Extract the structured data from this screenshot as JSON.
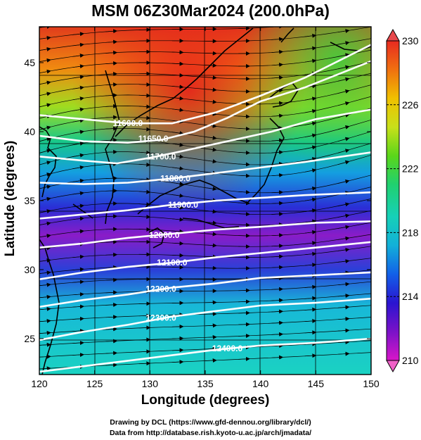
{
  "title": "MSM 06Z30Mar2024 (200.0hPa)",
  "xlabel": "Longitude (degrees)",
  "ylabel": "Latitude  (degrees)",
  "credits": [
    "Drawing by DCL (https://www.gfd-dennou.org/library/dcl/)",
    "Data from http://database.rish.kyoto-u.ac.jp/arch/jmadata/"
  ],
  "chart_data": {
    "type": "map",
    "xlim": [
      120,
      150
    ],
    "ylim": [
      22.4,
      47.6
    ],
    "x_ticks": [
      120,
      125,
      130,
      135,
      140,
      145,
      150
    ],
    "x_tick_labels": [
      "120",
      "125",
      "130",
      "135",
      "140",
      "145",
      "150"
    ],
    "y_ticks": [
      25,
      30,
      35,
      40,
      45
    ],
    "y_tick_labels": [
      "25",
      "30",
      "35",
      "40",
      "45"
    ],
    "colorbar": {
      "min": 210,
      "max": 230,
      "tick_values": [
        210,
        214,
        218,
        222,
        226,
        230
      ],
      "tick_labels": [
        "210",
        "214",
        "218",
        "222",
        "226",
        "230"
      ],
      "colors": [
        "#d816c8",
        "#7a12c8",
        "#2a14d0",
        "#1260e8",
        "#12b0d8",
        "#16d0b8",
        "#20d070",
        "#5ad61a",
        "#c8e01a",
        "#f0c000",
        "#f07010",
        "#e82a20"
      ]
    },
    "contours": [
      {
        "label": "11600.0",
        "lon": 128.0,
        "lat": 40.6,
        "points": [
          [
            120,
            41.2
          ],
          [
            124,
            40.9
          ],
          [
            128,
            40.6
          ],
          [
            132,
            40.6
          ],
          [
            136,
            41.4
          ],
          [
            140,
            42.6
          ],
          [
            144,
            43.9
          ],
          [
            150,
            46.3
          ]
        ]
      },
      {
        "label": "11650.0",
        "lon": 130.3,
        "lat": 39.5,
        "points": [
          [
            120,
            39.7
          ],
          [
            124,
            39.3
          ],
          [
            128,
            39.2
          ],
          [
            131,
            39.4
          ],
          [
            134,
            40.0
          ],
          [
            137,
            41.0
          ],
          [
            140,
            42.2
          ],
          [
            144,
            43.2
          ],
          [
            150,
            45.1
          ]
        ]
      },
      {
        "label": "11700.0",
        "lon": 131.0,
        "lat": 38.2,
        "points": [
          [
            120,
            38.2
          ],
          [
            124,
            37.9
          ],
          [
            127,
            37.7
          ],
          [
            130,
            38.1
          ],
          [
            133,
            38.6
          ],
          [
            137,
            39.3
          ],
          [
            141,
            40.0
          ],
          [
            145,
            40.9
          ],
          [
            150,
            41.6
          ]
        ]
      },
      {
        "label": "11800.0",
        "lon": 132.3,
        "lat": 36.6,
        "points": [
          [
            120,
            36.3
          ],
          [
            124,
            36.2
          ],
          [
            128,
            36.3
          ],
          [
            132,
            36.6
          ],
          [
            136,
            37.0
          ],
          [
            140,
            37.4
          ],
          [
            144,
            37.8
          ],
          [
            150,
            38.5
          ]
        ]
      },
      {
        "label": "11900.0",
        "lon": 133.0,
        "lat": 34.7,
        "points": [
          [
            120,
            33.7
          ],
          [
            124,
            34.0
          ],
          [
            128,
            34.3
          ],
          [
            132,
            34.7
          ],
          [
            136,
            35.0
          ],
          [
            140,
            35.2
          ],
          [
            144,
            35.4
          ],
          [
            150,
            35.6
          ]
        ]
      },
      {
        "label": "12000.0",
        "lon": 131.3,
        "lat": 32.5,
        "points": [
          [
            120,
            31.6
          ],
          [
            124,
            31.9
          ],
          [
            128,
            32.3
          ],
          [
            132,
            32.6
          ],
          [
            136,
            32.9
          ],
          [
            140,
            33.1
          ],
          [
            145,
            33.4
          ],
          [
            150,
            33.5
          ]
        ]
      },
      {
        "label": "12100.0",
        "lon": 132.0,
        "lat": 30.5,
        "points": [
          [
            120,
            29.3
          ],
          [
            124,
            29.8
          ],
          [
            128,
            30.2
          ],
          [
            132,
            30.5
          ],
          [
            136,
            30.9
          ],
          [
            140,
            31.2
          ],
          [
            145,
            31.6
          ],
          [
            150,
            32.0
          ]
        ]
      },
      {
        "label": "12200.0",
        "lon": 131.0,
        "lat": 28.6,
        "points": [
          [
            120,
            27.3
          ],
          [
            124,
            27.8
          ],
          [
            128,
            28.2
          ],
          [
            132,
            28.7
          ],
          [
            136,
            29.0
          ],
          [
            140,
            29.4
          ],
          [
            145,
            29.6
          ],
          [
            150,
            29.8
          ]
        ]
      },
      {
        "label": "12300.0",
        "lon": 131.0,
        "lat": 26.5,
        "points": [
          [
            120,
            24.9
          ],
          [
            124,
            25.5
          ],
          [
            128,
            26.0
          ],
          [
            132,
            26.6
          ],
          [
            136,
            27.0
          ],
          [
            140,
            27.4
          ],
          [
            145,
            27.6
          ],
          [
            150,
            27.9
          ]
        ]
      },
      {
        "label": "12400.0",
        "lon": 137.0,
        "lat": 24.3,
        "points": [
          [
            120,
            22.6
          ],
          [
            124,
            23.0
          ],
          [
            128,
            23.4
          ],
          [
            132,
            23.8
          ],
          [
            136,
            24.2
          ],
          [
            140,
            24.5
          ],
          [
            145,
            24.7
          ],
          [
            150,
            25.0
          ]
        ]
      }
    ]
  }
}
